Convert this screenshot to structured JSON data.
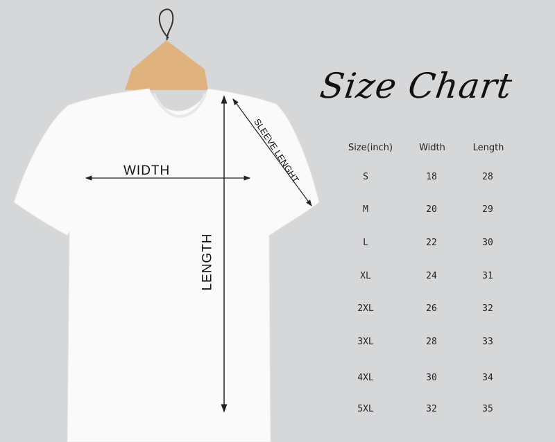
{
  "title": "Size Chart",
  "measure_labels": {
    "width": "WIDTH",
    "length": "LENGTH",
    "sleeve": "SLEEVE LENGHT"
  },
  "table": {
    "headers": [
      "Size(inch)",
      "Width",
      "Length"
    ],
    "rows": [
      [
        "S",
        "18",
        "28"
      ],
      [
        "M",
        "20",
        "29"
      ],
      [
        "L",
        "22",
        "30"
      ],
      [
        "XL",
        "24",
        "31"
      ],
      [
        "2XL",
        "26",
        "32"
      ],
      [
        "3XL",
        "28",
        "33"
      ],
      [
        "4XL",
        "30",
        "34"
      ],
      [
        "5XL",
        "32",
        "35"
      ]
    ]
  },
  "colors": {
    "background": "#d6d7d9",
    "shirt": "#fafafa",
    "hanger": "#e0b27e"
  }
}
